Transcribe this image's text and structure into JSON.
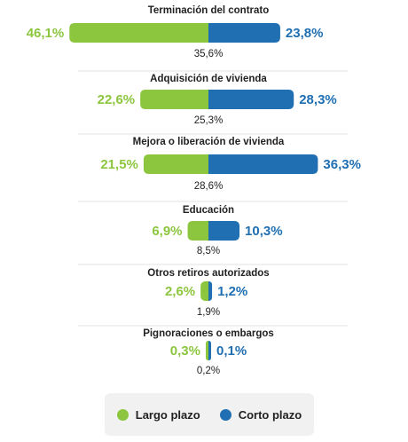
{
  "colors": {
    "largo": "#8cc63f",
    "corto": "#1f6fb2"
  },
  "legend": {
    "largo_label": "Largo plazo",
    "corto_label": "Corto plazo"
  },
  "chart_data": {
    "type": "bar",
    "categories": [
      "Terminación del contrato",
      "Adquisición de vivienda",
      "Mejora o liberación de vivienda",
      "Educación",
      "Otros retiros autorizados",
      "Pignoraciones o embargos"
    ],
    "series": [
      {
        "name": "Largo plazo",
        "values": [
          46.1,
          22.6,
          21.5,
          6.9,
          2.6,
          0.3
        ]
      },
      {
        "name": "Corto plazo",
        "values": [
          23.8,
          28.3,
          36.3,
          10.3,
          1.2,
          0.1
        ]
      }
    ],
    "left_labels": [
      "46,1%",
      "22,6%",
      "21,5%",
      "6,9%",
      "2,6%",
      "0,3%"
    ],
    "right_labels": [
      "23,8%",
      "28,3%",
      "36,3%",
      "10,3%",
      "1,2%",
      "0,1%"
    ],
    "totals": [
      "35,6%",
      "25,3%",
      "28,6%",
      "8,5%",
      "1,9%",
      "0,2%"
    ]
  }
}
